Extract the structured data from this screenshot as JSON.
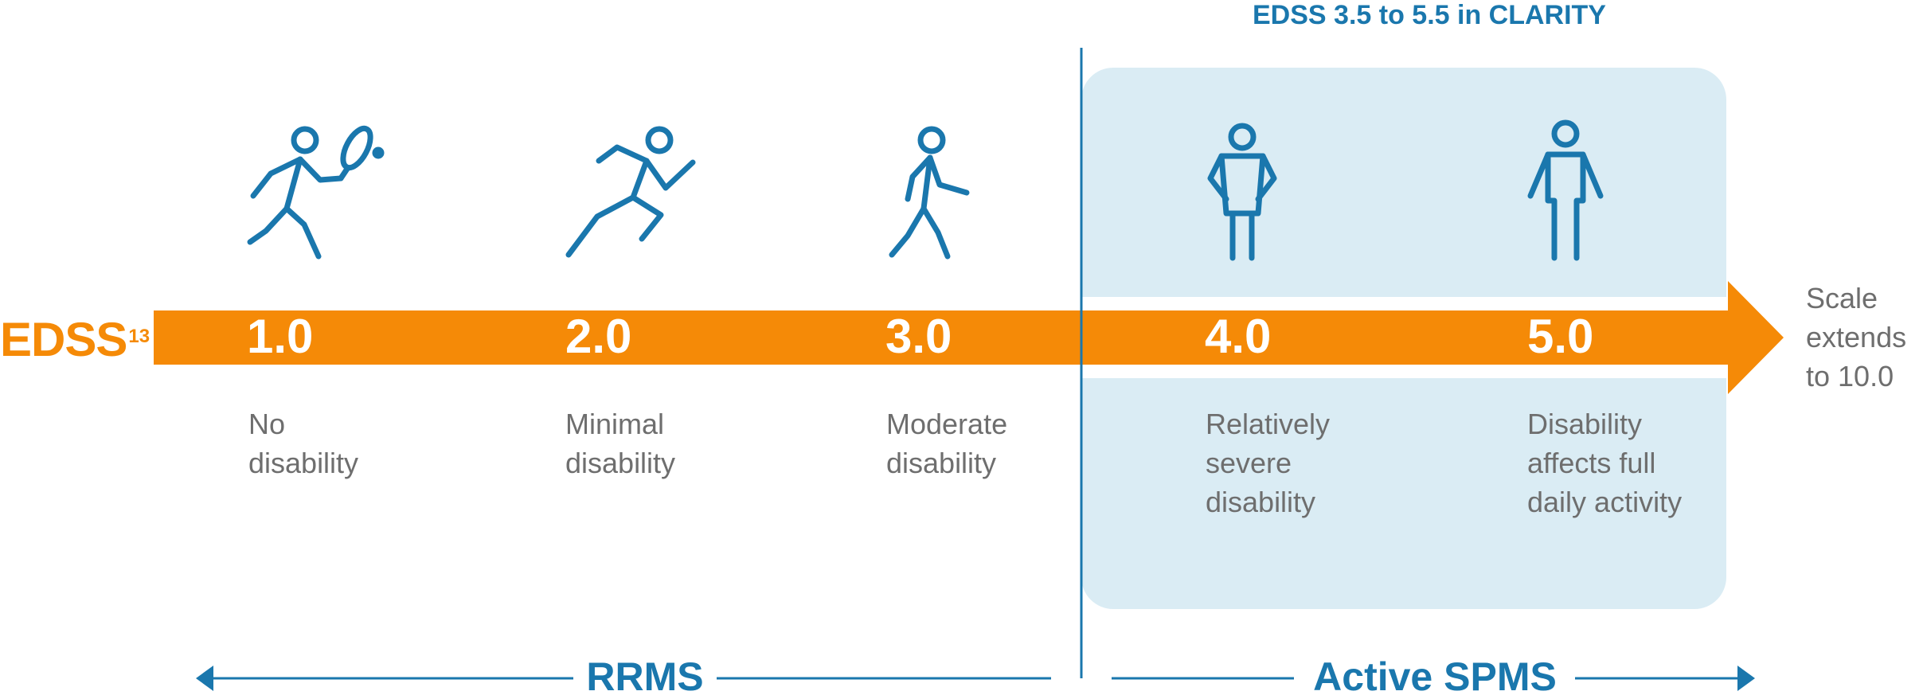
{
  "clarity_range_title": "EDSS 3.5 to 5.5 in CLARITY",
  "axis": {
    "label": "EDSS",
    "reference": "13",
    "continuation_note": "Scale extends to 10.0"
  },
  "steps": [
    {
      "score": "1.0",
      "description_lines": [
        "No",
        "disability"
      ],
      "icon": "tennis-player-icon"
    },
    {
      "score": "2.0",
      "description_lines": [
        "Minimal",
        "disability"
      ],
      "icon": "running-person-icon"
    },
    {
      "score": "3.0",
      "description_lines": [
        "Moderate",
        "disability"
      ],
      "icon": "walking-person-icon"
    },
    {
      "score": "4.0",
      "description_lines": [
        "Relatively",
        "severe",
        "disability"
      ],
      "icon": "person-hands-on-hips-icon"
    },
    {
      "score": "5.0",
      "description_lines": [
        "Disability",
        "affects full",
        "daily activity"
      ],
      "icon": "standing-person-icon"
    }
  ],
  "phases": [
    {
      "label": "RRMS"
    },
    {
      "label": "Active SPMS"
    }
  ],
  "colors": {
    "orange": "#f58a07",
    "blue": "#1a77ad",
    "highlight": "#daecf4",
    "gray_text": "#6e6e6e"
  }
}
